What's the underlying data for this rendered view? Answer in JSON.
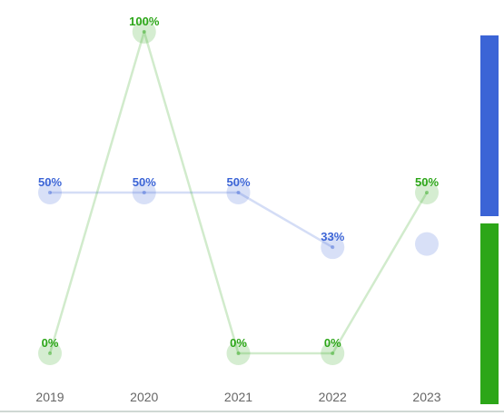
{
  "chart_data": {
    "type": "line",
    "categories": [
      "2019",
      "2020",
      "2021",
      "2022",
      "2023"
    ],
    "series": [
      {
        "key": "blue",
        "color": "#3b64d6",
        "values": [
          50,
          50,
          50,
          33,
          null
        ],
        "marker_values": [
          50,
          50,
          50,
          33,
          34
        ],
        "labels": [
          "50%",
          "50%",
          "50%",
          "33%",
          ""
        ]
      },
      {
        "key": "green",
        "color": "#2ca618",
        "values": [
          0,
          100,
          0,
          0,
          50
        ],
        "marker_values": [
          0,
          100,
          0,
          0,
          50
        ],
        "labels": [
          "0%",
          "100%",
          "0%",
          "0%",
          "50%"
        ]
      }
    ],
    "ylim": [
      0,
      100
    ],
    "grid": false,
    "legend": "right",
    "legend_colors": [
      "#3b64d6",
      "#2ca618"
    ]
  }
}
